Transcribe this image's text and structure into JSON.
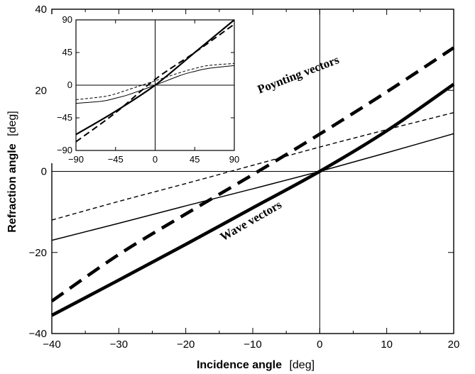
{
  "chart_data": {
    "type": "line",
    "xlabel": "Incidence angle",
    "xlabel_unit": "[deg]",
    "ylabel": "Refraction angle",
    "ylabel_unit": "[deg]",
    "xlim": [
      -40,
      20
    ],
    "ylim": [
      -40,
      40
    ],
    "xticks": [
      -40,
      -30,
      -20,
      -10,
      0,
      10,
      20
    ],
    "xtick_labels": [
      "−40",
      "−30",
      "−20",
      "−10",
      "0",
      "10",
      "20"
    ],
    "yticks": [
      -40,
      -20,
      0,
      20,
      40
    ],
    "ytick_labels": [
      "−40",
      "−20",
      "0",
      "20",
      "40"
    ],
    "grid": false,
    "reference_lines": [
      "x=0",
      "y=0"
    ],
    "annotations": [
      {
        "text": "Poynting vectors",
        "at": [
          -3,
          23
        ],
        "angle": -21
      },
      {
        "text": "Wave vectors",
        "at": [
          -10,
          -13
        ],
        "angle": -30
      }
    ],
    "series": [
      {
        "style": "thick-solid",
        "x": [
          -40,
          -30,
          -20,
          -10,
          0,
          10,
          20
        ],
        "y": [
          -35.5,
          -26.8,
          -18,
          -9,
          0,
          10,
          21.5
        ]
      },
      {
        "style": "thick-dashed",
        "x": [
          -40,
          -30,
          -20,
          -10,
          0,
          10,
          20
        ],
        "y": [
          -32,
          -20.5,
          -10.5,
          -0.8,
          9.2,
          19.6,
          30.5
        ]
      },
      {
        "style": "thin-solid",
        "x": [
          -40,
          -30,
          -20,
          -10,
          0,
          10,
          20
        ],
        "y": [
          -17,
          -12.8,
          -8.5,
          -4.3,
          0,
          4.6,
          9.3
        ]
      },
      {
        "style": "thin-dashed",
        "x": [
          -40,
          -30,
          -20,
          -10,
          0,
          10,
          20
        ],
        "y": [
          -12,
          -7.4,
          -3,
          1.5,
          6,
          10.3,
          14.5
        ]
      }
    ],
    "inset": {
      "type": "line",
      "xlim": [
        -90,
        90
      ],
      "ylim": [
        -90,
        90
      ],
      "xticks": [
        -90,
        -45,
        0,
        45,
        90
      ],
      "xtick_labels": [
        "−90",
        "−45",
        "0",
        "45",
        "90"
      ],
      "yticks": [
        -90,
        -45,
        0,
        45,
        90
      ],
      "ytick_labels": [
        "−90",
        "−45",
        "0",
        "45",
        "90"
      ],
      "reference_lines": [
        "x=0",
        "y=0"
      ],
      "series": [
        {
          "style": "thick-solid",
          "x": [
            -90,
            -45,
            0,
            45,
            90
          ],
          "y": [
            -68,
            -36,
            0,
            45,
            90
          ]
        },
        {
          "style": "thick-dashed",
          "x": [
            -90,
            -45,
            0,
            45,
            90
          ],
          "y": [
            -78,
            -38,
            8,
            45,
            84
          ]
        },
        {
          "style": "thin-solid",
          "x": [
            -90,
            -60,
            -45,
            -30,
            0,
            30,
            45,
            60,
            90
          ],
          "y": [
            -25,
            -22,
            -18,
            -13,
            0,
            14,
            19,
            23,
            27
          ]
        },
        {
          "style": "thin-dashed",
          "x": [
            -90,
            -60,
            -45,
            -30,
            0,
            30,
            45,
            60,
            90
          ],
          "y": [
            -20,
            -16,
            -12,
            -6,
            6,
            18,
            23,
            27,
            30
          ]
        }
      ]
    }
  }
}
